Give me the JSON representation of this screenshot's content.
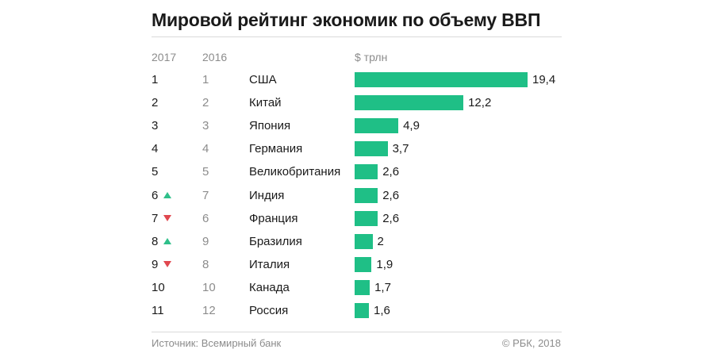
{
  "chart_data": {
    "type": "bar",
    "orientation": "horizontal",
    "title": "Мировой рейтинг экономик по объему ВВП",
    "columns": {
      "rank_2017": "2017",
      "rank_2016": "2016",
      "unit": "$ трлн"
    },
    "xlim": [
      0,
      19.4
    ],
    "rows": [
      {
        "rank_2017": "1",
        "trend": "",
        "rank_2016": "1",
        "country": "США",
        "value": 19.4,
        "label": "19,4"
      },
      {
        "rank_2017": "2",
        "trend": "",
        "rank_2016": "2",
        "country": "Китай",
        "value": 12.2,
        "label": "12,2"
      },
      {
        "rank_2017": "3",
        "trend": "",
        "rank_2016": "3",
        "country": "Япония",
        "value": 4.9,
        "label": "4,9"
      },
      {
        "rank_2017": "4",
        "trend": "",
        "rank_2016": "4",
        "country": "Германия",
        "value": 3.7,
        "label": "3,7"
      },
      {
        "rank_2017": "5",
        "trend": "",
        "rank_2016": "5",
        "country": "Великобритания",
        "value": 2.6,
        "label": "2,6"
      },
      {
        "rank_2017": "6",
        "trend": "up",
        "rank_2016": "7",
        "country": "Индия",
        "value": 2.6,
        "label": "2,6"
      },
      {
        "rank_2017": "7",
        "trend": "down",
        "rank_2016": "6",
        "country": "Франция",
        "value": 2.6,
        "label": "2,6"
      },
      {
        "rank_2017": "8",
        "trend": "up",
        "rank_2016": "9",
        "country": "Бразилия",
        "value": 2.0,
        "label": "2"
      },
      {
        "rank_2017": "9",
        "trend": "down",
        "rank_2016": "8",
        "country": "Италия",
        "value": 1.9,
        "label": "1,9"
      },
      {
        "rank_2017": "10",
        "trend": "",
        "rank_2016": "10",
        "country": "Канада",
        "value": 1.7,
        "label": "1,7"
      },
      {
        "rank_2017": "11",
        "trend": "",
        "rank_2016": "12",
        "country": "Россия",
        "value": 1.6,
        "label": "1,6"
      }
    ],
    "colors": {
      "bar": "#1fbf86",
      "up": "#2fbf8a",
      "down": "#e0484f"
    }
  },
  "footer": {
    "source": "Источник: Всемирный банк",
    "copyright": "© РБК, 2018"
  }
}
